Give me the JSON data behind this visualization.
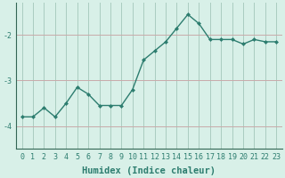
{
  "xlabel": "Humidex (Indice chaleur)",
  "x_values": [
    0,
    1,
    2,
    3,
    4,
    5,
    6,
    7,
    8,
    9,
    10,
    11,
    12,
    13,
    14,
    15,
    16,
    17,
    18,
    19,
    20,
    21,
    22,
    23
  ],
  "y_values": [
    -3.8,
    -3.8,
    -3.6,
    -3.8,
    -3.5,
    -3.15,
    -3.3,
    -3.55,
    -3.55,
    -3.55,
    -3.2,
    -2.55,
    -2.35,
    -2.15,
    -1.85,
    -1.55,
    -1.75,
    -2.1,
    -2.1,
    -2.1,
    -2.2,
    -2.1,
    -2.15,
    -2.15
  ],
  "ylim": [
    -4.5,
    -1.3
  ],
  "yticks": [
    -4,
    -3,
    -2
  ],
  "line_color": "#2d7d6f",
  "marker": "D",
  "marker_size": 2.0,
  "bg_color": "#d8f0e8",
  "grid_color_h": "#c8aaaa",
  "grid_color_v": "#aaccc0",
  "tick_label_fontsize": 6.0,
  "xlabel_fontsize": 7.5,
  "line_width": 1.0,
  "spine_color": "#336655"
}
